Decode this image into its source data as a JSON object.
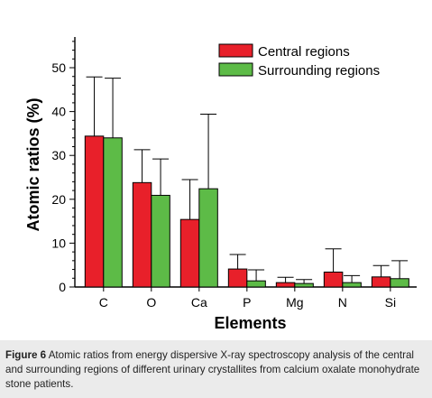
{
  "chart_data": {
    "type": "bar",
    "xlabel": "Elements",
    "ylabel": "Atomic ratios (%)",
    "ylim": [
      0,
      57
    ],
    "yticks": [
      0,
      10,
      20,
      30,
      40,
      50
    ],
    "grid": false,
    "legend_position": "top-right",
    "categories": [
      "C",
      "O",
      "Ca",
      "P",
      "Mg",
      "N",
      "Si"
    ],
    "series": [
      {
        "name": "Central regions",
        "color": "#e8202a",
        "values": [
          34.4,
          23.8,
          15.4,
          4.1,
          1.0,
          3.4,
          2.3
        ],
        "errors": [
          13.5,
          7.5,
          9.1,
          3.3,
          1.2,
          5.3,
          2.6
        ]
      },
      {
        "name": "Surrounding regions",
        "color": "#5dbb47",
        "values": [
          34.0,
          20.9,
          22.4,
          1.4,
          0.8,
          1.0,
          1.9
        ],
        "errors": [
          13.6,
          8.3,
          17.0,
          2.5,
          0.9,
          1.6,
          4.1
        ]
      }
    ]
  },
  "caption": {
    "label": "Figure 6",
    "text": " Atomic ratios from energy dispersive X-ray spectroscopy analysis of the central and surrounding regions of different urinary crystallites from calcium oxalate monohydrate stone patients."
  }
}
